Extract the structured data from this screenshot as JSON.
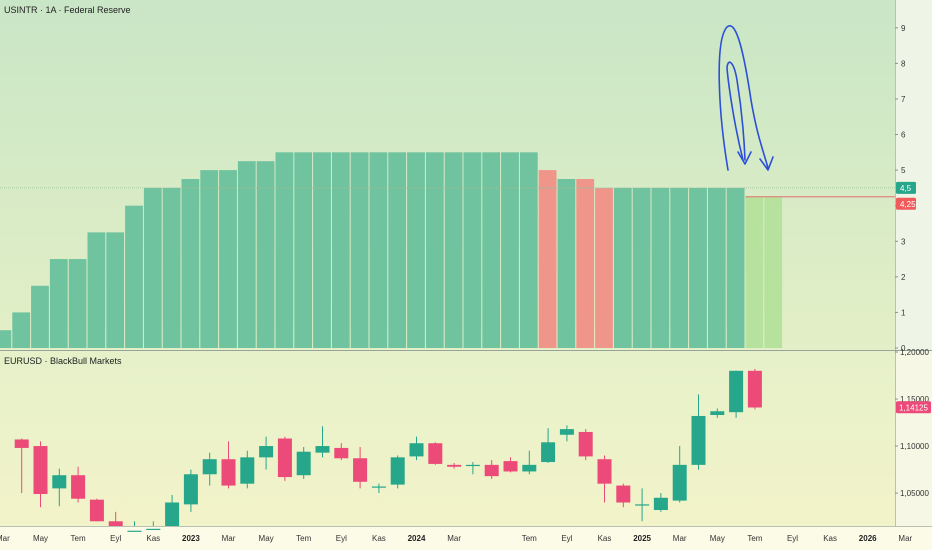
{
  "colors": {
    "rate_bar": "#6fc39e",
    "rate_bar_cut": "#f0958a",
    "rate_bar_forecast": "#b7e29e",
    "candle_up": "#26a68a",
    "candle_down": "#ec4a78",
    "badge_rate": "#26a68a",
    "badge_forecast": "#f05a5a",
    "badge_eurusd": "#ec4a78",
    "arrow": "#2c4fd8"
  },
  "chart_data": [
    {
      "type": "bar",
      "legend": "USINTR · 1A · Federal Reserve",
      "y_ticks": [
        "0",
        "1",
        "2",
        "3",
        "4",
        "5",
        "6",
        "7",
        "8",
        "9"
      ],
      "ylim": [
        0,
        9.5
      ],
      "current_label": "4,5",
      "forecast_label": "4,25",
      "reference_level": 4.5,
      "forecast_level": 4.25,
      "arrows_icon": "hand-drawn-down-arrows-icon",
      "bars": [
        {
          "month": "2022-03",
          "value": 0.5,
          "kind": "normal"
        },
        {
          "month": "2022-04",
          "value": 1.0,
          "kind": "normal"
        },
        {
          "month": "2022-05",
          "value": 1.75,
          "kind": "normal"
        },
        {
          "month": "2022-06",
          "value": 2.5,
          "kind": "normal"
        },
        {
          "month": "2022-07",
          "value": 2.5,
          "kind": "normal"
        },
        {
          "month": "2022-08",
          "value": 3.25,
          "kind": "normal"
        },
        {
          "month": "2022-09",
          "value": 3.25,
          "kind": "normal"
        },
        {
          "month": "2022-10",
          "value": 4.0,
          "kind": "normal"
        },
        {
          "month": "2022-11",
          "value": 4.5,
          "kind": "normal"
        },
        {
          "month": "2022-12",
          "value": 4.5,
          "kind": "normal"
        },
        {
          "month": "2023-01",
          "value": 4.75,
          "kind": "normal"
        },
        {
          "month": "2023-02",
          "value": 5.0,
          "kind": "normal"
        },
        {
          "month": "2023-03",
          "value": 5.0,
          "kind": "normal"
        },
        {
          "month": "2023-04",
          "value": 5.25,
          "kind": "normal"
        },
        {
          "month": "2023-05",
          "value": 5.25,
          "kind": "normal"
        },
        {
          "month": "2023-06",
          "value": 5.5,
          "kind": "normal"
        },
        {
          "month": "2023-07",
          "value": 5.5,
          "kind": "normal"
        },
        {
          "month": "2023-08",
          "value": 5.5,
          "kind": "normal"
        },
        {
          "month": "2023-09",
          "value": 5.5,
          "kind": "normal"
        },
        {
          "month": "2023-10",
          "value": 5.5,
          "kind": "normal"
        },
        {
          "month": "2023-11",
          "value": 5.5,
          "kind": "normal"
        },
        {
          "month": "2023-12",
          "value": 5.5,
          "kind": "normal"
        },
        {
          "month": "2024-01",
          "value": 5.5,
          "kind": "normal"
        },
        {
          "month": "2024-02",
          "value": 5.5,
          "kind": "normal"
        },
        {
          "month": "2024-03",
          "value": 5.5,
          "kind": "normal"
        },
        {
          "month": "2024-04",
          "value": 5.5,
          "kind": "normal"
        },
        {
          "month": "2024-05",
          "value": 5.5,
          "kind": "normal"
        },
        {
          "month": "2024-06",
          "value": 5.5,
          "kind": "normal"
        },
        {
          "month": "2024-07",
          "value": 5.5,
          "kind": "normal"
        },
        {
          "month": "2024-08",
          "value": 5.0,
          "kind": "cut"
        },
        {
          "month": "2024-09",
          "value": 4.75,
          "kind": "normal"
        },
        {
          "month": "2024-10",
          "value": 4.75,
          "kind": "cut"
        },
        {
          "month": "2024-11",
          "value": 4.5,
          "kind": "cut"
        },
        {
          "month": "2024-12",
          "value": 4.5,
          "kind": "normal"
        },
        {
          "month": "2025-01",
          "value": 4.5,
          "kind": "normal"
        },
        {
          "month": "2025-02",
          "value": 4.5,
          "kind": "normal"
        },
        {
          "month": "2025-03",
          "value": 4.5,
          "kind": "normal"
        },
        {
          "month": "2025-04",
          "value": 4.5,
          "kind": "normal"
        },
        {
          "month": "2025-05",
          "value": 4.5,
          "kind": "normal"
        },
        {
          "month": "2025-06",
          "value": 4.5,
          "kind": "normal"
        },
        {
          "month": "2025-07",
          "value": 4.25,
          "kind": "forecast"
        },
        {
          "month": "2025-08",
          "value": 4.25,
          "kind": "forecast"
        }
      ]
    },
    {
      "type": "candlestick",
      "legend": "EURUSD · BlackBull Markets",
      "y_ticks": [
        {
          "value": 1.05,
          "label": "1,05000"
        },
        {
          "value": 1.1,
          "label": "1,10000"
        },
        {
          "value": 1.15,
          "label": "1,15000"
        },
        {
          "value": 1.2,
          "label": "1,20000"
        }
      ],
      "ylim": [
        1.015,
        1.2
      ],
      "last_label": "1,14125",
      "last_value": 1.14125,
      "x_ticks": [
        {
          "month": "2022-03",
          "label": "Mar",
          "bold": false
        },
        {
          "month": "2022-05",
          "label": "May",
          "bold": false
        },
        {
          "month": "2022-07",
          "label": "Tem",
          "bold": false
        },
        {
          "month": "2022-09",
          "label": "Eyl",
          "bold": false
        },
        {
          "month": "2022-11",
          "label": "Kas",
          "bold": false
        },
        {
          "month": "2023-01",
          "label": "2023",
          "bold": true
        },
        {
          "month": "2023-03",
          "label": "Mar",
          "bold": false
        },
        {
          "month": "2023-05",
          "label": "May",
          "bold": false
        },
        {
          "month": "2023-07",
          "label": "Tem",
          "bold": false
        },
        {
          "month": "2023-09",
          "label": "Eyl",
          "bold": false
        },
        {
          "month": "2023-11",
          "label": "Kas",
          "bold": false
        },
        {
          "month": "2024-01",
          "label": "2024",
          "bold": true
        },
        {
          "month": "2024-03",
          "label": "Mar",
          "bold": false
        },
        {
          "month": "2024-07",
          "label": "Tem",
          "bold": false
        },
        {
          "month": "2024-09",
          "label": "Eyl",
          "bold": false
        },
        {
          "month": "2024-11",
          "label": "Kas",
          "bold": false
        },
        {
          "month": "2025-01",
          "label": "2025",
          "bold": true
        },
        {
          "month": "2025-03",
          "label": "Mar",
          "bold": false
        },
        {
          "month": "2025-05",
          "label": "May",
          "bold": false
        },
        {
          "month": "2025-07",
          "label": "Tem",
          "bold": false
        },
        {
          "month": "2025-09",
          "label": "Eyl",
          "bold": false
        },
        {
          "month": "2025-11",
          "label": "Kas",
          "bold": false
        },
        {
          "month": "2026-01",
          "label": "2026",
          "bold": true
        },
        {
          "month": "2026-03",
          "label": "Mar",
          "bold": false
        }
      ],
      "candles": [
        {
          "month": "2022-04",
          "o": 1.107,
          "h": 1.108,
          "l": 1.05,
          "c": 1.098
        },
        {
          "month": "2022-05",
          "o": 1.1,
          "h": 1.105,
          "l": 1.035,
          "c": 1.049
        },
        {
          "month": "2022-06",
          "o": 1.055,
          "h": 1.076,
          "l": 1.036,
          "c": 1.069
        },
        {
          "month": "2022-07",
          "o": 1.069,
          "h": 1.078,
          "l": 1.04,
          "c": 1.044
        },
        {
          "month": "2022-08",
          "o": 1.043,
          "h": 1.044,
          "l": 1.02,
          "c": 1.02
        },
        {
          "month": "2022-09",
          "o": 1.02,
          "h": 1.03,
          "l": 1.0,
          "c": 1.005
        },
        {
          "month": "2022-10",
          "o": 1.005,
          "h": 1.02,
          "l": 0.99,
          "c": 1.01
        },
        {
          "month": "2022-11",
          "o": 1.01,
          "h": 1.02,
          "l": 1.005,
          "c": 1.012
        },
        {
          "month": "2022-12",
          "o": 1.012,
          "h": 1.048,
          "l": 1.0,
          "c": 1.04
        },
        {
          "month": "2023-01",
          "o": 1.038,
          "h": 1.075,
          "l": 1.03,
          "c": 1.07
        },
        {
          "month": "2023-02",
          "o": 1.07,
          "h": 1.093,
          "l": 1.058,
          "c": 1.086
        },
        {
          "month": "2023-03",
          "o": 1.086,
          "h": 1.105,
          "l": 1.055,
          "c": 1.058
        },
        {
          "month": "2023-04",
          "o": 1.06,
          "h": 1.095,
          "l": 1.055,
          "c": 1.088
        },
        {
          "month": "2023-05",
          "o": 1.088,
          "h": 1.11,
          "l": 1.075,
          "c": 1.1
        },
        {
          "month": "2023-06",
          "o": 1.108,
          "h": 1.11,
          "l": 1.063,
          "c": 1.067
        },
        {
          "month": "2023-07",
          "o": 1.069,
          "h": 1.099,
          "l": 1.065,
          "c": 1.094
        },
        {
          "month": "2023-08",
          "o": 1.093,
          "h": 1.121,
          "l": 1.088,
          "c": 1.1
        },
        {
          "month": "2023-09",
          "o": 1.098,
          "h": 1.103,
          "l": 1.085,
          "c": 1.087
        },
        {
          "month": "2023-10",
          "o": 1.087,
          "h": 1.099,
          "l": 1.055,
          "c": 1.062
        },
        {
          "month": "2023-11",
          "o": 1.056,
          "h": 1.06,
          "l": 1.05,
          "c": 1.057
        },
        {
          "month": "2023-12",
          "o": 1.059,
          "h": 1.09,
          "l": 1.055,
          "c": 1.088
        },
        {
          "month": "2024-01",
          "o": 1.089,
          "h": 1.11,
          "l": 1.085,
          "c": 1.103
        },
        {
          "month": "2024-02",
          "o": 1.103,
          "h": 1.104,
          "l": 1.08,
          "c": 1.081
        },
        {
          "month": "2024-03",
          "o": 1.08,
          "h": 1.082,
          "l": 1.076,
          "c": 1.078
        },
        {
          "month": "2024-04",
          "o": 1.079,
          "h": 1.083,
          "l": 1.07,
          "c": 1.08
        },
        {
          "month": "2024-05",
          "o": 1.08,
          "h": 1.085,
          "l": 1.065,
          "c": 1.068
        },
        {
          "month": "2024-06",
          "o": 1.084,
          "h": 1.088,
          "l": 1.072,
          "c": 1.073
        },
        {
          "month": "2024-07",
          "o": 1.073,
          "h": 1.095,
          "l": 1.07,
          "c": 1.08
        },
        {
          "month": "2024-08",
          "o": 1.083,
          "h": 1.119,
          "l": 1.082,
          "c": 1.104
        },
        {
          "month": "2024-09",
          "o": 1.112,
          "h": 1.122,
          "l": 1.105,
          "c": 1.118
        },
        {
          "month": "2024-10",
          "o": 1.115,
          "h": 1.118,
          "l": 1.085,
          "c": 1.089
        },
        {
          "month": "2024-11",
          "o": 1.086,
          "h": 1.09,
          "l": 1.04,
          "c": 1.06
        },
        {
          "month": "2024-12",
          "o": 1.058,
          "h": 1.06,
          "l": 1.035,
          "c": 1.04
        },
        {
          "month": "2025-01",
          "o": 1.037,
          "h": 1.055,
          "l": 1.02,
          "c": 1.038
        },
        {
          "month": "2025-02",
          "o": 1.032,
          "h": 1.05,
          "l": 1.03,
          "c": 1.045
        },
        {
          "month": "2025-03",
          "o": 1.042,
          "h": 1.1,
          "l": 1.04,
          "c": 1.08
        },
        {
          "month": "2025-04",
          "o": 1.08,
          "h": 1.155,
          "l": 1.075,
          "c": 1.132
        },
        {
          "month": "2025-05",
          "o": 1.133,
          "h": 1.14,
          "l": 1.13,
          "c": 1.137
        },
        {
          "month": "2025-06",
          "o": 1.136,
          "h": 1.18,
          "l": 1.13,
          "c": 1.18
        },
        {
          "month": "2025-07",
          "o": 1.18,
          "h": 1.182,
          "l": 1.139,
          "c": 1.141
        }
      ]
    }
  ]
}
